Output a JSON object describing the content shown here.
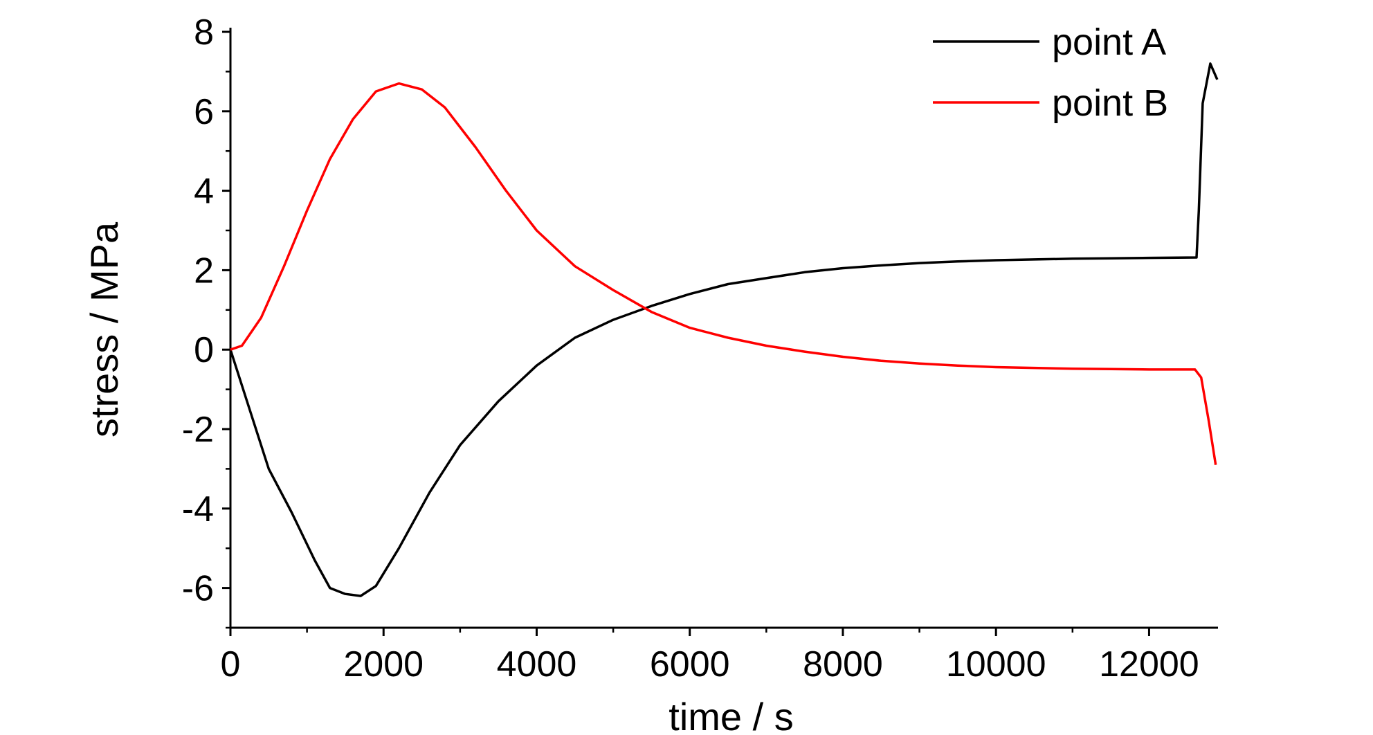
{
  "chart_data": {
    "type": "line",
    "title": "",
    "xlabel": "time / s",
    "ylabel": "stress / MPa",
    "xlim": [
      0,
      12900
    ],
    "ylim": [
      -7,
      8
    ],
    "x_ticks": [
      0,
      2000,
      4000,
      6000,
      8000,
      10000,
      12000
    ],
    "y_ticks": [
      -6,
      -4,
      -2,
      0,
      2,
      4,
      6,
      8
    ],
    "x_tick_labels": [
      "0",
      "2000",
      "4000",
      "6000",
      "8000",
      "10000",
      "12000"
    ],
    "y_tick_labels": [
      "-6",
      "-4",
      "-2",
      "0",
      "2",
      "4",
      "6",
      "8"
    ],
    "grid": false,
    "legend_position": "top-right",
    "series": [
      {
        "name": "point A",
        "color": "#000000",
        "points": [
          [
            0,
            0
          ],
          [
            200,
            -1.2
          ],
          [
            500,
            -3.0
          ],
          [
            800,
            -4.1
          ],
          [
            1100,
            -5.3
          ],
          [
            1300,
            -6.0
          ],
          [
            1500,
            -6.15
          ],
          [
            1700,
            -6.2
          ],
          [
            1900,
            -5.95
          ],
          [
            2200,
            -5.0
          ],
          [
            2600,
            -3.6
          ],
          [
            3000,
            -2.4
          ],
          [
            3500,
            -1.3
          ],
          [
            4000,
            -0.4
          ],
          [
            4500,
            0.3
          ],
          [
            5000,
            0.75
          ],
          [
            5500,
            1.1
          ],
          [
            6000,
            1.4
          ],
          [
            6500,
            1.65
          ],
          [
            7000,
            1.8
          ],
          [
            7500,
            1.95
          ],
          [
            8000,
            2.05
          ],
          [
            8500,
            2.12
          ],
          [
            9000,
            2.18
          ],
          [
            9500,
            2.22
          ],
          [
            10000,
            2.25
          ],
          [
            10500,
            2.27
          ],
          [
            11000,
            2.29
          ],
          [
            11500,
            2.3
          ],
          [
            12000,
            2.31
          ],
          [
            12620,
            2.32
          ],
          [
            12650,
            3.5
          ],
          [
            12700,
            6.2
          ],
          [
            12800,
            7.2
          ],
          [
            12890,
            6.8
          ]
        ]
      },
      {
        "name": "point B",
        "color": "#ff0000",
        "points": [
          [
            0,
            0
          ],
          [
            150,
            0.1
          ],
          [
            400,
            0.8
          ],
          [
            700,
            2.1
          ],
          [
            1000,
            3.5
          ],
          [
            1300,
            4.8
          ],
          [
            1600,
            5.8
          ],
          [
            1900,
            6.5
          ],
          [
            2200,
            6.7
          ],
          [
            2500,
            6.55
          ],
          [
            2800,
            6.1
          ],
          [
            3200,
            5.1
          ],
          [
            3600,
            4.0
          ],
          [
            4000,
            3.0
          ],
          [
            4500,
            2.1
          ],
          [
            5000,
            1.5
          ],
          [
            5500,
            0.95
          ],
          [
            6000,
            0.55
          ],
          [
            6500,
            0.3
          ],
          [
            7000,
            0.1
          ],
          [
            7500,
            -0.05
          ],
          [
            8000,
            -0.18
          ],
          [
            8500,
            -0.28
          ],
          [
            9000,
            -0.35
          ],
          [
            9500,
            -0.4
          ],
          [
            10000,
            -0.44
          ],
          [
            10500,
            -0.46
          ],
          [
            11000,
            -0.48
          ],
          [
            11500,
            -0.49
          ],
          [
            12000,
            -0.5
          ],
          [
            12600,
            -0.5
          ],
          [
            12680,
            -0.7
          ],
          [
            12780,
            -1.8
          ],
          [
            12870,
            -2.9
          ]
        ]
      }
    ]
  }
}
